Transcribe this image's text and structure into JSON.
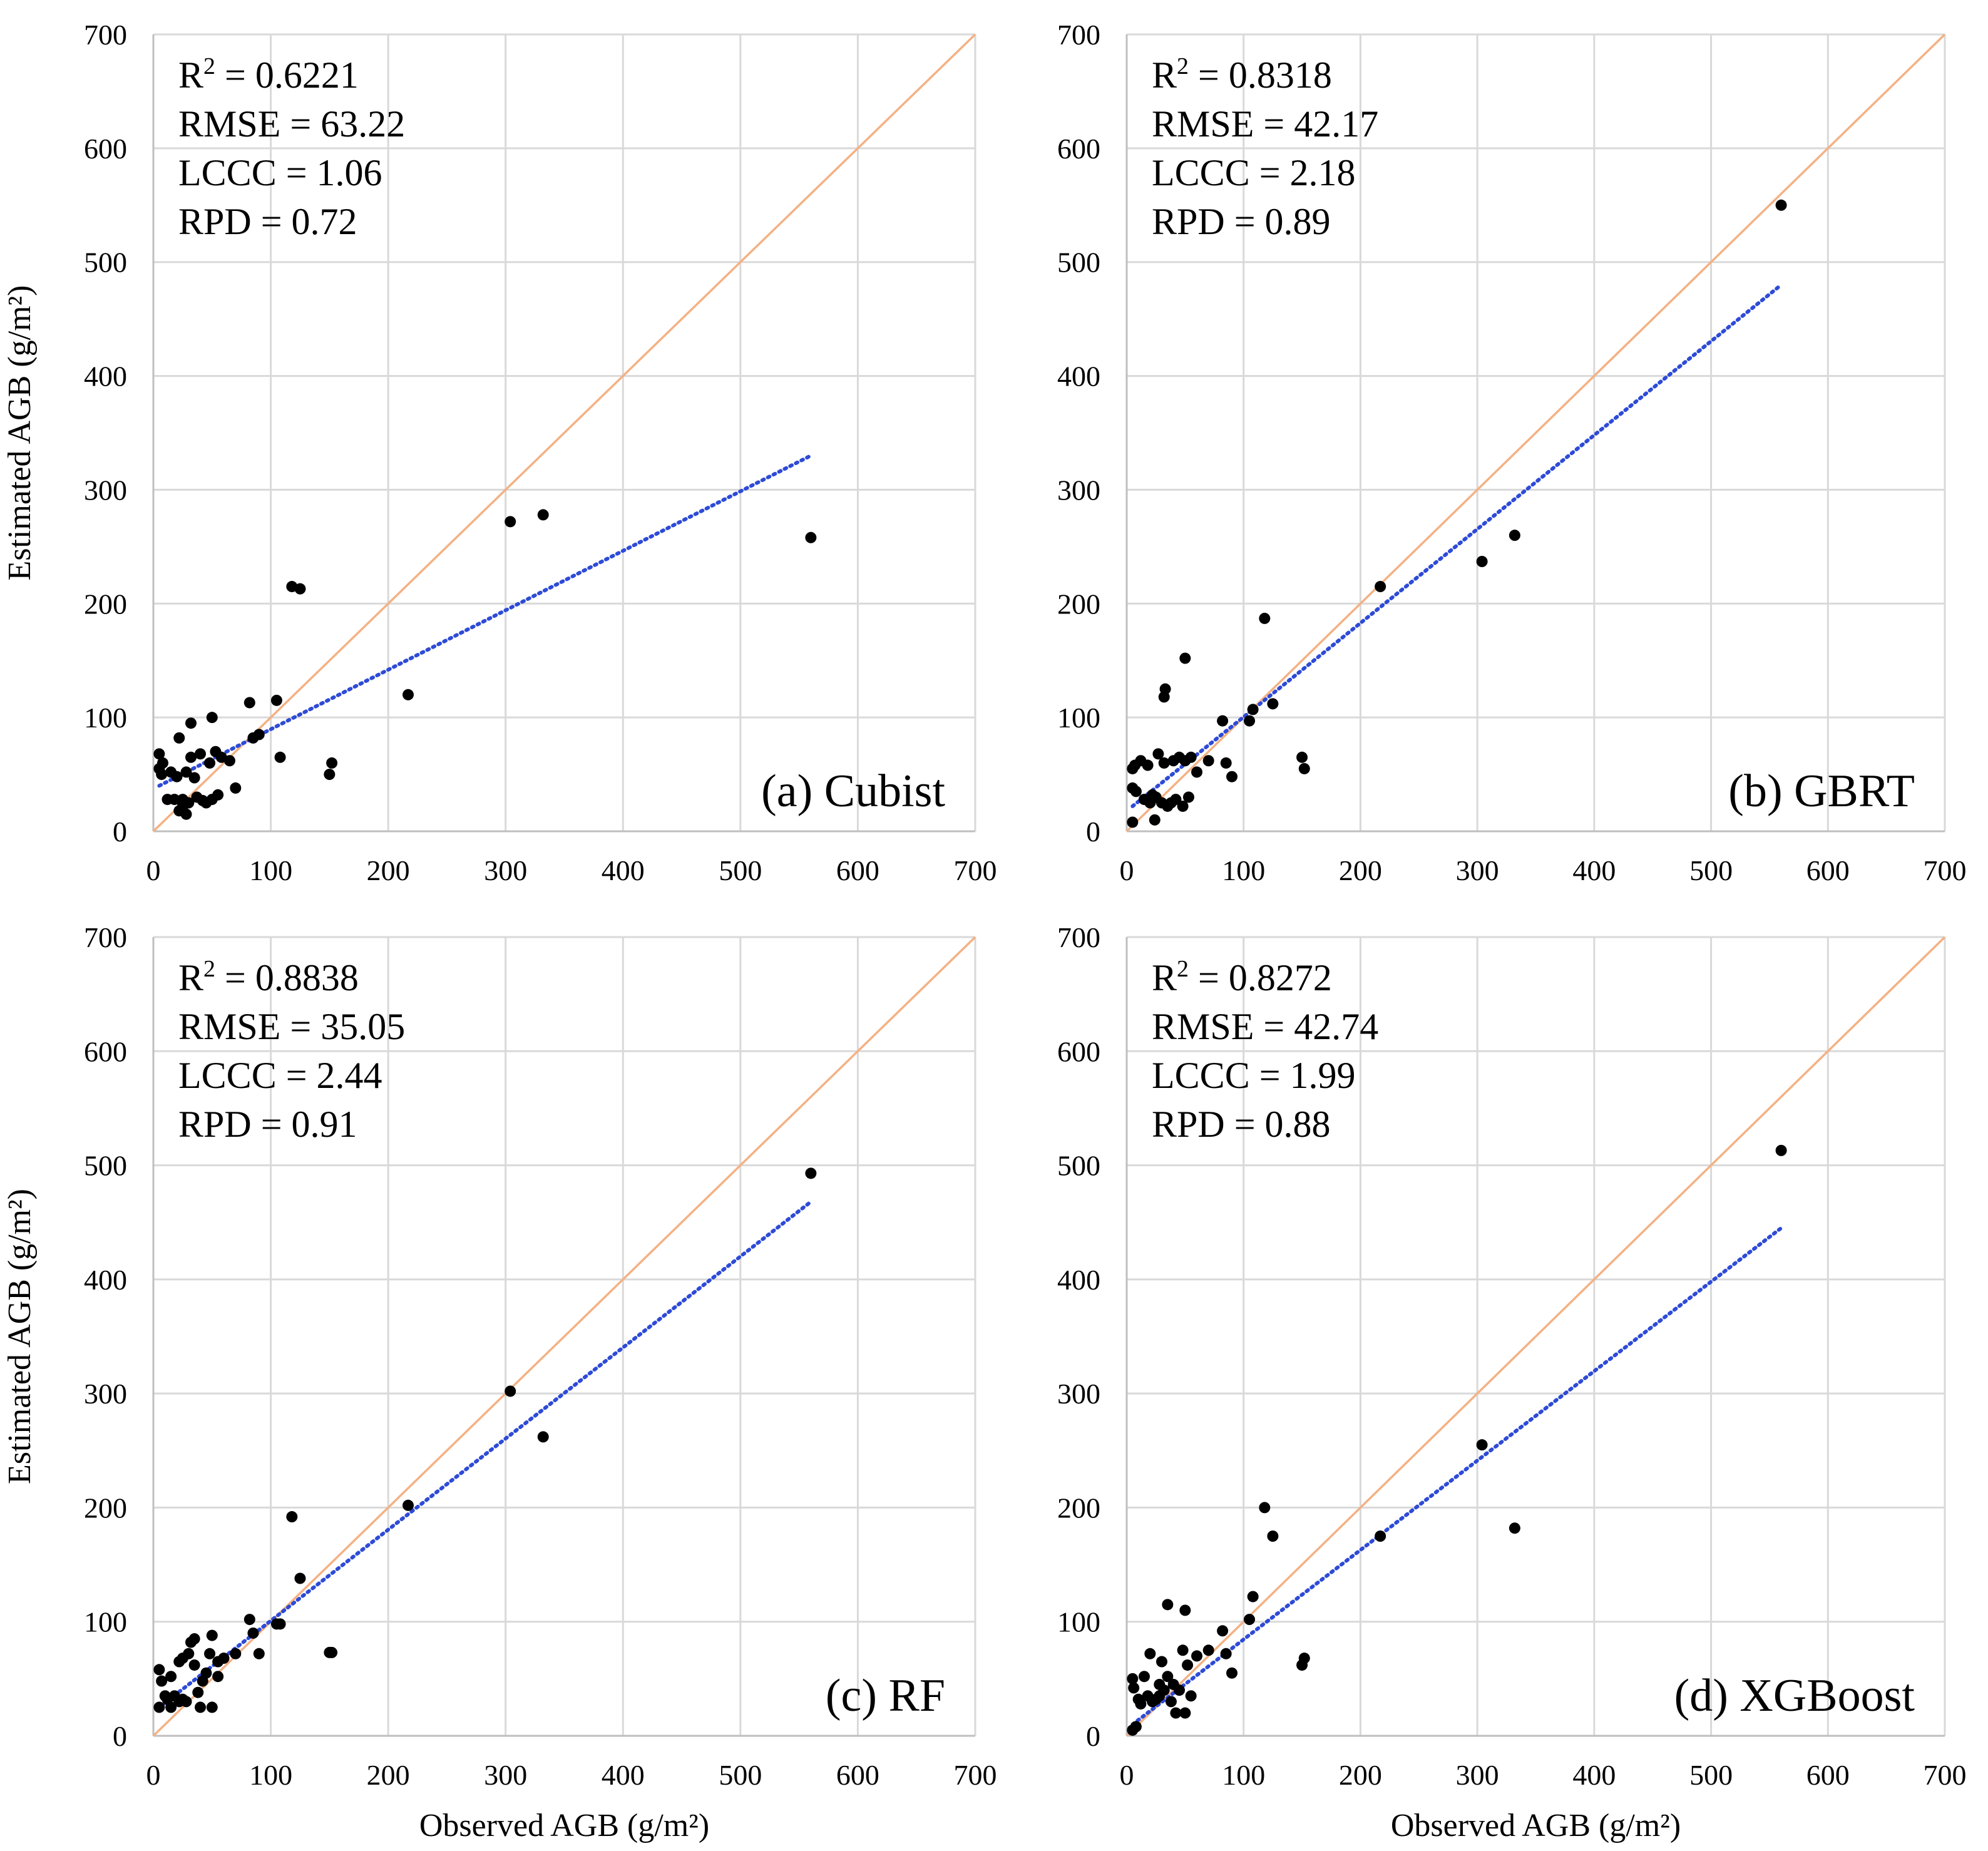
{
  "colors": {
    "grid": "#d9d9d9",
    "identity_line": "#f4b183",
    "trend_line": "#2e4bd6",
    "points": "#000000"
  },
  "shared": {
    "xlabel": "Observed AGB  (g/m²)",
    "ylabel": "Estimated AGB  (g/m²)"
  },
  "chart_data": [
    {
      "type": "scatter",
      "id": "a",
      "panel_label": "(a) Cubist",
      "stats": [
        {
          "label": "R",
          "sup": "2",
          "value": " = 0.6221"
        },
        {
          "label": "RMSE",
          "sup": "",
          "value": " = 63.22"
        },
        {
          "label": "LCCC",
          "sup": "",
          "value": " = 1.06"
        },
        {
          "label": "RPD",
          "sup": "",
          "value": " = 0.72"
        }
      ],
      "xlim": [
        0,
        700
      ],
      "ylim": [
        0,
        700
      ],
      "xticks": [
        0,
        100,
        200,
        300,
        400,
        500,
        600,
        700
      ],
      "yticks": [
        0,
        100,
        200,
        300,
        400,
        500,
        600,
        700
      ],
      "xlabel": "",
      "ylabel": "Estimated AGB  (g/m²)",
      "identity_line": [
        [
          0,
          0
        ],
        [
          700,
          700
        ]
      ],
      "trend_line": [
        [
          5,
          40
        ],
        [
          560,
          330
        ]
      ],
      "points": [
        [
          5,
          68
        ],
        [
          5,
          55
        ],
        [
          7,
          50
        ],
        [
          8,
          60
        ],
        [
          12,
          28
        ],
        [
          15,
          52
        ],
        [
          18,
          28
        ],
        [
          20,
          48
        ],
        [
          22,
          18
        ],
        [
          22,
          82
        ],
        [
          25,
          28
        ],
        [
          25,
          22
        ],
        [
          28,
          15
        ],
        [
          28,
          52
        ],
        [
          30,
          25
        ],
        [
          32,
          65
        ],
        [
          32,
          95
        ],
        [
          35,
          47
        ],
        [
          37,
          30
        ],
        [
          40,
          68
        ],
        [
          42,
          27
        ],
        [
          45,
          25
        ],
        [
          48,
          60
        ],
        [
          50,
          100
        ],
        [
          50,
          28
        ],
        [
          53,
          70
        ],
        [
          55,
          32
        ],
        [
          58,
          65
        ],
        [
          65,
          62
        ],
        [
          70,
          38
        ],
        [
          82,
          113
        ],
        [
          85,
          82
        ],
        [
          90,
          85
        ],
        [
          105,
          115
        ],
        [
          108,
          65
        ],
        [
          118,
          215
        ],
        [
          125,
          213
        ],
        [
          150,
          50
        ],
        [
          152,
          60
        ],
        [
          217,
          120
        ],
        [
          304,
          272
        ],
        [
          332,
          278
        ],
        [
          560,
          258
        ]
      ]
    },
    {
      "type": "scatter",
      "id": "b",
      "panel_label": "(b) GBRT",
      "stats": [
        {
          "label": "R",
          "sup": "2",
          "value": " = 0.8318"
        },
        {
          "label": "RMSE",
          "sup": "",
          "value": " = 42.17"
        },
        {
          "label": "LCCC",
          "sup": "",
          "value": " = 2.18"
        },
        {
          "label": "RPD",
          "sup": "",
          "value": " = 0.89"
        }
      ],
      "xlim": [
        0,
        700
      ],
      "ylim": [
        0,
        700
      ],
      "xticks": [
        0,
        100,
        200,
        300,
        400,
        500,
        600,
        700
      ],
      "yticks": [
        0,
        100,
        200,
        300,
        400,
        500,
        600,
        700
      ],
      "xlabel": "",
      "ylabel": "",
      "identity_line": [
        [
          0,
          0
        ],
        [
          700,
          700
        ]
      ],
      "trend_line": [
        [
          5,
          22
        ],
        [
          560,
          480
        ]
      ],
      "points": [
        [
          5,
          8
        ],
        [
          5,
          55
        ],
        [
          5,
          38
        ],
        [
          7,
          58
        ],
        [
          8,
          35
        ],
        [
          12,
          62
        ],
        [
          15,
          28
        ],
        [
          18,
          58
        ],
        [
          20,
          25
        ],
        [
          22,
          32
        ],
        [
          24,
          10
        ],
        [
          25,
          30
        ],
        [
          27,
          68
        ],
        [
          30,
          25
        ],
        [
          32,
          60
        ],
        [
          32,
          118
        ],
        [
          33,
          125
        ],
        [
          35,
          22
        ],
        [
          38,
          25
        ],
        [
          40,
          62
        ],
        [
          42,
          28
        ],
        [
          45,
          65
        ],
        [
          48,
          22
        ],
        [
          50,
          152
        ],
        [
          50,
          62
        ],
        [
          53,
          30
        ],
        [
          55,
          65
        ],
        [
          60,
          52
        ],
        [
          70,
          62
        ],
        [
          82,
          97
        ],
        [
          85,
          60
        ],
        [
          90,
          48
        ],
        [
          105,
          97
        ],
        [
          108,
          107
        ],
        [
          118,
          187
        ],
        [
          125,
          112
        ],
        [
          150,
          65
        ],
        [
          152,
          55
        ],
        [
          217,
          215
        ],
        [
          304,
          237
        ],
        [
          332,
          260
        ],
        [
          560,
          550
        ]
      ]
    },
    {
      "type": "scatter",
      "id": "c",
      "panel_label": "(c) RF",
      "stats": [
        {
          "label": "R",
          "sup": "2",
          "value": " = 0.8838"
        },
        {
          "label": "RMSE",
          "sup": "",
          "value": " = 35.05"
        },
        {
          "label": "LCCC",
          "sup": "",
          "value": " = 2.44"
        },
        {
          "label": "RPD",
          "sup": "",
          "value": " = 0.91"
        }
      ],
      "xlim": [
        0,
        700
      ],
      "ylim": [
        0,
        700
      ],
      "xticks": [
        0,
        100,
        200,
        300,
        400,
        500,
        600,
        700
      ],
      "yticks": [
        0,
        100,
        200,
        300,
        400,
        500,
        600,
        700
      ],
      "xlabel": "Observed AGB  (g/m²)",
      "ylabel": "Estimated AGB  (g/m²)",
      "identity_line": [
        [
          0,
          0
        ],
        [
          700,
          700
        ]
      ],
      "trend_line": [
        [
          5,
          25
        ],
        [
          560,
          468
        ]
      ],
      "points": [
        [
          5,
          58
        ],
        [
          5,
          25
        ],
        [
          7,
          48
        ],
        [
          10,
          35
        ],
        [
          12,
          32
        ],
        [
          15,
          52
        ],
        [
          15,
          25
        ],
        [
          18,
          35
        ],
        [
          22,
          65
        ],
        [
          22,
          30
        ],
        [
          25,
          32
        ],
        [
          25,
          68
        ],
        [
          28,
          30
        ],
        [
          30,
          72
        ],
        [
          32,
          82
        ],
        [
          35,
          85
        ],
        [
          35,
          62
        ],
        [
          38,
          38
        ],
        [
          40,
          25
        ],
        [
          42,
          48
        ],
        [
          45,
          55
        ],
        [
          48,
          72
        ],
        [
          50,
          88
        ],
        [
          50,
          25
        ],
        [
          55,
          65
        ],
        [
          55,
          52
        ],
        [
          60,
          68
        ],
        [
          70,
          72
        ],
        [
          82,
          102
        ],
        [
          85,
          90
        ],
        [
          90,
          72
        ],
        [
          105,
          98
        ],
        [
          108,
          98
        ],
        [
          118,
          192
        ],
        [
          125,
          138
        ],
        [
          150,
          73
        ],
        [
          152,
          73
        ],
        [
          217,
          202
        ],
        [
          304,
          302
        ],
        [
          332,
          262
        ],
        [
          560,
          493
        ]
      ]
    },
    {
      "type": "scatter",
      "id": "d",
      "panel_label": "(d) XGBoost",
      "stats": [
        {
          "label": "R",
          "sup": "2",
          "value": " = 0.8272"
        },
        {
          "label": "RMSE",
          "sup": "",
          "value": " = 42.74"
        },
        {
          "label": "LCCC",
          "sup": "",
          "value": " = 1.99"
        },
        {
          "label": "RPD",
          "sup": "",
          "value": " = 0.88"
        }
      ],
      "xlim": [
        0,
        700
      ],
      "ylim": [
        0,
        700
      ],
      "xticks": [
        0,
        100,
        200,
        300,
        400,
        500,
        600,
        700
      ],
      "yticks": [
        0,
        100,
        200,
        300,
        400,
        500,
        600,
        700
      ],
      "xlabel": "Observed AGB  (g/m²)",
      "ylabel": "",
      "identity_line": [
        [
          0,
          0
        ],
        [
          700,
          700
        ]
      ],
      "trend_line": [
        [
          5,
          10
        ],
        [
          560,
          445
        ]
      ],
      "points": [
        [
          5,
          5
        ],
        [
          5,
          50
        ],
        [
          6,
          42
        ],
        [
          8,
          8
        ],
        [
          10,
          32
        ],
        [
          12,
          28
        ],
        [
          15,
          52
        ],
        [
          18,
          35
        ],
        [
          20,
          72
        ],
        [
          22,
          30
        ],
        [
          25,
          32
        ],
        [
          28,
          35
        ],
        [
          28,
          45
        ],
        [
          30,
          65
        ],
        [
          32,
          40
        ],
        [
          35,
          115
        ],
        [
          35,
          52
        ],
        [
          38,
          30
        ],
        [
          40,
          45
        ],
        [
          42,
          20
        ],
        [
          45,
          40
        ],
        [
          48,
          75
        ],
        [
          50,
          110
        ],
        [
          50,
          20
        ],
        [
          52,
          62
        ],
        [
          55,
          35
        ],
        [
          60,
          70
        ],
        [
          70,
          75
        ],
        [
          82,
          92
        ],
        [
          85,
          72
        ],
        [
          90,
          55
        ],
        [
          105,
          102
        ],
        [
          108,
          122
        ],
        [
          118,
          200
        ],
        [
          125,
          175
        ],
        [
          150,
          62
        ],
        [
          152,
          68
        ],
        [
          217,
          175
        ],
        [
          304,
          255
        ],
        [
          332,
          182
        ],
        [
          560,
          513
        ]
      ]
    }
  ]
}
